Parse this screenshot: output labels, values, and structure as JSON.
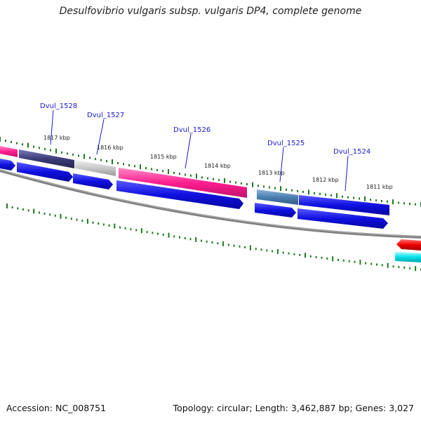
{
  "title": "Desulfovibrio vulgaris subsp. vulgaris DP4, complete genome",
  "footer": {
    "accession": "Accession: NC_008751",
    "summary": "Topology: circular; Length: 3,462,887 bp; Genes: 3,027"
  },
  "kbp_labels": [
    "1817 kbp",
    "1816 kbp",
    "1815 kbp",
    "1814 kbp",
    "1813 kbp",
    "1812 kbp",
    "1811 kbp"
  ],
  "gene_labels": [
    "Dvul_1528",
    "Dvul_1527",
    "Dvul_1526",
    "Dvul_1525",
    "Dvul_1524"
  ],
  "colors": {
    "magenta": "#ff1f8f",
    "navy": "#3b3b7a",
    "grey": "#c8c8c8",
    "steel": "#4a7fb0",
    "blue": "#1010e0",
    "red": "#ee0000",
    "cyan": "#00e0e8",
    "tick": "#1e7a1e",
    "backbone": "#808080",
    "leader": "#1a1acc"
  }
}
